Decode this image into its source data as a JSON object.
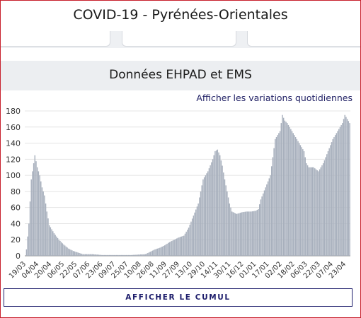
{
  "header": {
    "title": "COVID-19 - Pyrénées-Orientales"
  },
  "section": {
    "title": "Données EHPAD et EMS",
    "variation_link": "Afficher les variations quotidiennes",
    "cumul_button": "AFFICHER LE CUMUL"
  },
  "colors": {
    "bar": "#a8b0bd",
    "grid": "#e4e4e4",
    "accent": "#1d1d6b",
    "frame": "#c8202c"
  },
  "chart_data": {
    "type": "bar",
    "title": "",
    "xlabel": "",
    "ylabel": "",
    "ylim": [
      0,
      180
    ],
    "y_ticks": [
      0,
      20,
      40,
      60,
      80,
      100,
      120,
      140,
      160,
      180
    ],
    "grid": true,
    "x_tick_labels": [
      "19/03",
      "04/04",
      "20/04",
      "06/05",
      "22/05",
      "07/06",
      "23/06",
      "09/07",
      "25/07",
      "10/08",
      "26/08",
      "11/09",
      "27/09",
      "13/10",
      "29/10",
      "14/11",
      "30/11",
      "16/12",
      "01/01",
      "17/01",
      "02/02",
      "18/02",
      "06/03",
      "22/03",
      "07/04",
      "23/04"
    ],
    "series": [
      {
        "keypoints": [
          [
            0,
            0
          ],
          [
            1,
            8
          ],
          [
            3,
            40
          ],
          [
            5,
            95
          ],
          [
            8,
            125
          ],
          [
            10,
            110
          ],
          [
            12,
            100
          ],
          [
            14,
            85
          ],
          [
            16,
            75
          ],
          [
            18,
            55
          ],
          [
            20,
            38
          ],
          [
            24,
            28
          ],
          [
            28,
            20
          ],
          [
            32,
            14
          ],
          [
            36,
            9
          ],
          [
            40,
            6
          ],
          [
            44,
            4
          ],
          [
            48,
            2
          ],
          [
            56,
            2
          ],
          [
            64,
            1
          ],
          [
            76,
            1
          ],
          [
            88,
            1
          ],
          [
            100,
            2
          ],
          [
            104,
            5
          ],
          [
            108,
            8
          ],
          [
            112,
            10
          ],
          [
            116,
            13
          ],
          [
            120,
            17
          ],
          [
            124,
            20
          ],
          [
            128,
            23
          ],
          [
            132,
            25
          ],
          [
            136,
            35
          ],
          [
            140,
            50
          ],
          [
            144,
            65
          ],
          [
            146,
            80
          ],
          [
            148,
            95
          ],
          [
            152,
            105
          ],
          [
            156,
            120
          ],
          [
            158,
            130
          ],
          [
            160,
            132
          ],
          [
            162,
            125
          ],
          [
            164,
            112
          ],
          [
            166,
            95
          ],
          [
            168,
            80
          ],
          [
            170,
            65
          ],
          [
            172,
            55
          ],
          [
            176,
            52
          ],
          [
            180,
            54
          ],
          [
            184,
            55
          ],
          [
            188,
            55
          ],
          [
            192,
            56
          ],
          [
            194,
            58
          ],
          [
            196,
            70
          ],
          [
            200,
            85
          ],
          [
            204,
            100
          ],
          [
            208,
            145
          ],
          [
            212,
            155
          ],
          [
            214,
            175
          ],
          [
            216,
            168
          ],
          [
            218,
            165
          ],
          [
            220,
            160
          ],
          [
            224,
            150
          ],
          [
            228,
            140
          ],
          [
            232,
            130
          ],
          [
            234,
            115
          ],
          [
            236,
            110
          ],
          [
            240,
            110
          ],
          [
            244,
            105
          ],
          [
            248,
            115
          ],
          [
            252,
            130
          ],
          [
            256,
            145
          ],
          [
            260,
            155
          ],
          [
            264,
            165
          ],
          [
            266,
            175
          ],
          [
            268,
            170
          ],
          [
            270,
            165
          ]
        ]
      }
    ]
  }
}
